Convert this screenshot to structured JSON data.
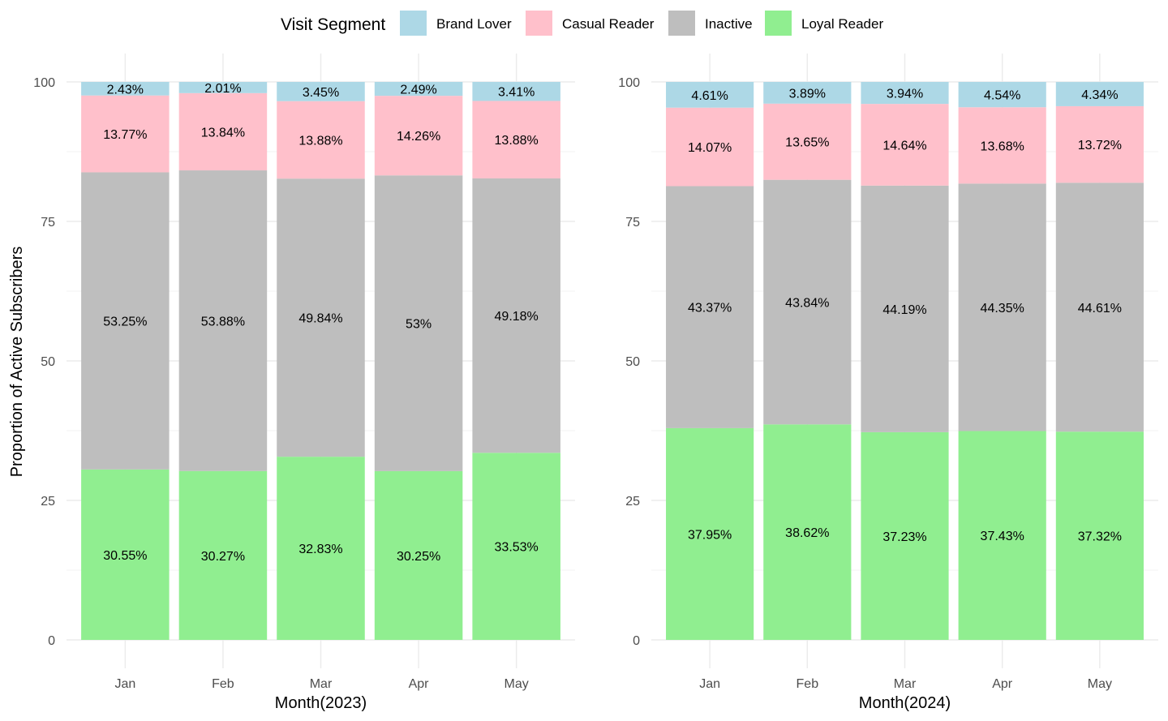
{
  "legend": {
    "title": "Visit Segment",
    "placement": "top",
    "entries": [
      {
        "name": "Brand Lover",
        "color": "#ADD8E6"
      },
      {
        "name": "Casual Reader",
        "color": "#FFC0CB"
      },
      {
        "name": "Inactive",
        "color": "#BEBEBE"
      },
      {
        "name": "Loyal Reader",
        "color": "#90EE90"
      }
    ]
  },
  "chart_data": [
    {
      "type": "bar",
      "stacked": true,
      "categories": [
        "Jan",
        "Feb",
        "Mar",
        "Apr",
        "May"
      ],
      "xlabel": "Month(2023)",
      "ylabel": "Proportion of Active Subscribers",
      "ylim": [
        0,
        100
      ],
      "yticks": [
        0,
        25,
        50,
        75,
        100
      ],
      "grid": true,
      "series": [
        {
          "name": "Loyal Reader",
          "color": "#90EE90",
          "values": [
            30.55,
            30.27,
            32.83,
            30.25,
            33.53
          ],
          "labels": [
            "30.55%",
            "30.27%",
            "32.83%",
            "30.25%",
            "33.53%"
          ]
        },
        {
          "name": "Inactive",
          "color": "#BEBEBE",
          "values": [
            53.25,
            53.88,
            49.84,
            53.0,
            49.18
          ],
          "labels": [
            "53.25%",
            "53.88%",
            "49.84%",
            "53%",
            "49.18%"
          ]
        },
        {
          "name": "Casual Reader",
          "color": "#FFC0CB",
          "values": [
            13.77,
            13.84,
            13.88,
            14.26,
            13.88
          ],
          "labels": [
            "13.77%",
            "13.84%",
            "13.88%",
            "14.26%",
            "13.88%"
          ]
        },
        {
          "name": "Brand Lover",
          "color": "#ADD8E6",
          "values": [
            2.43,
            2.01,
            3.45,
            2.49,
            3.41
          ],
          "labels": [
            "2.43%",
            "2.01%",
            "3.45%",
            "2.49%",
            "3.41%"
          ]
        }
      ]
    },
    {
      "type": "bar",
      "stacked": true,
      "categories": [
        "Jan",
        "Feb",
        "Mar",
        "Apr",
        "May"
      ],
      "xlabel": "Month(2024)",
      "ylabel": "",
      "ylim": [
        0,
        100
      ],
      "yticks": [
        0,
        25,
        50,
        75,
        100
      ],
      "grid": true,
      "series": [
        {
          "name": "Loyal Reader",
          "color": "#90EE90",
          "values": [
            37.95,
            38.62,
            37.23,
            37.43,
            37.32
          ],
          "labels": [
            "37.95%",
            "38.62%",
            "37.23%",
            "37.43%",
            "37.32%"
          ]
        },
        {
          "name": "Inactive",
          "color": "#BEBEBE",
          "values": [
            43.37,
            43.84,
            44.19,
            44.35,
            44.61
          ],
          "labels": [
            "43.37%",
            "43.84%",
            "44.19%",
            "44.35%",
            "44.61%"
          ]
        },
        {
          "name": "Casual Reader",
          "color": "#FFC0CB",
          "values": [
            14.07,
            13.65,
            14.64,
            13.68,
            13.72
          ],
          "labels": [
            "14.07%",
            "13.65%",
            "14.64%",
            "13.68%",
            "13.72%"
          ]
        },
        {
          "name": "Brand Lover",
          "color": "#ADD8E6",
          "values": [
            4.61,
            3.89,
            3.94,
            4.54,
            4.34
          ],
          "labels": [
            "4.61%",
            "3.89%",
            "3.94%",
            "4.54%",
            "4.34%"
          ]
        }
      ]
    }
  ]
}
